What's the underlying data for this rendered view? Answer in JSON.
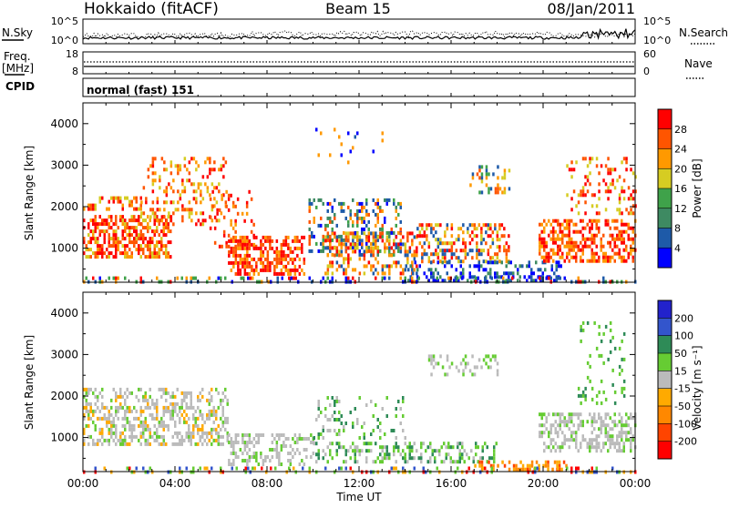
{
  "header": {
    "station": "Hokkaido (fitACF)",
    "beam": "Beam 15",
    "date": "08/Jan/2011"
  },
  "strips": {
    "nsky": {
      "label": "N.Sky",
      "right_label": "N.Search",
      "left_ticks": [
        "10^5",
        "10^0"
      ],
      "right_ticks": [
        "10^5",
        "10^0"
      ]
    },
    "freq": {
      "label_top": "Freq.",
      "label_bottom": "[MHz]",
      "right_label": "Nave",
      "left_ticks": [
        "18",
        "8"
      ],
      "right_ticks": [
        "60",
        "0"
      ]
    },
    "cpid": {
      "label": "CPID",
      "text": "normal (fast) 151"
    }
  },
  "colors": {
    "power_scale": [
      "#0000ff",
      "#1e5aa8",
      "#3e8a62",
      "#3fa24a",
      "#d6cc22",
      "#ff9900",
      "#ff5500",
      "#ff0000"
    ],
    "velocity_scale": [
      "#ff0000",
      "#ff4400",
      "#ff8800",
      "#ffaa00",
      "#bbbbbb",
      "#66cc33",
      "#2e8b57",
      "#3355cc",
      "#2222cc"
    ],
    "ground_scatter": "#bbbbbb"
  },
  "chart_data": [
    {
      "type": "heatmap",
      "panel": "power",
      "ylabel": "Slant Range [km]",
      "y_ticks": [
        "4000",
        "3000",
        "2000",
        "1000"
      ],
      "x_ticks": [
        "00:00",
        "04:00",
        "08:00",
        "12:00",
        "16:00",
        "20:00",
        "00:00"
      ],
      "colorbar": {
        "label": "Power [dB]",
        "ticks": [
          "28",
          "24",
          "20",
          "16",
          "12",
          "8",
          "4"
        ]
      },
      "xlim": [
        0,
        24
      ],
      "ylim": [
        180,
        4500
      ]
    },
    {
      "type": "heatmap",
      "panel": "velocity",
      "ylabel": "Slant Range [km]",
      "y_ticks": [
        "4000",
        "3000",
        "2000",
        "1000"
      ],
      "x_ticks": [
        "00:00",
        "04:00",
        "08:00",
        "12:00",
        "16:00",
        "20:00",
        "00:00"
      ],
      "xlabel": "Time UT",
      "colorbar": {
        "label": "Velocity [m s⁻¹]",
        "ticks": [
          "200",
          "100",
          "50",
          "15",
          "-15",
          "-50",
          "-100",
          "-200"
        ]
      },
      "xlim": [
        0,
        24
      ],
      "ylim": [
        180,
        4500
      ]
    }
  ]
}
